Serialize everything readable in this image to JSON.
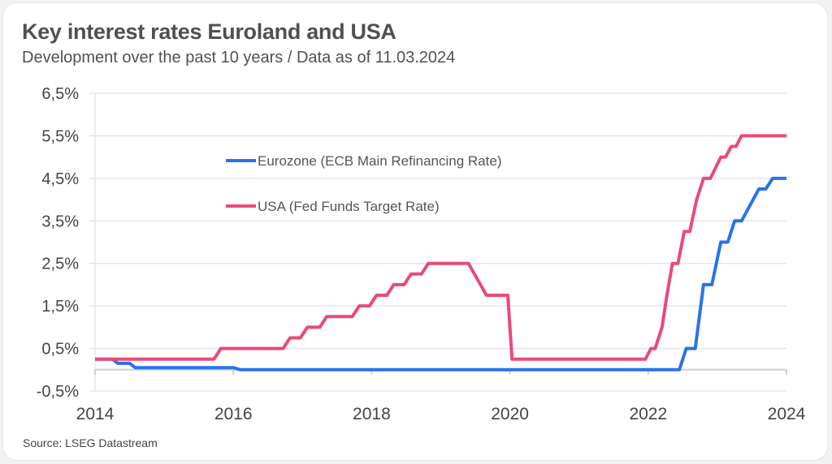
{
  "header": {
    "title": "Key interest rates Euroland and USA",
    "subtitle": "Development over the past 10 years / Data as of 11.03.2024"
  },
  "footer": {
    "source": "Source: LSEG Datastream"
  },
  "chart_data": {
    "type": "line",
    "title": "Key interest rates Euroland and USA",
    "subtitle": "Development over the past 10 years / Data as of 11.03.2024",
    "xlabel": "",
    "ylabel": "",
    "xlim": [
      2014,
      2024
    ],
    "ylim": [
      -0.5,
      6.5
    ],
    "x_ticks": [
      2014,
      2016,
      2018,
      2020,
      2022,
      2024
    ],
    "x_tick_labels": [
      "2014",
      "2016",
      "2018",
      "2020",
      "2022",
      "2024"
    ],
    "y_ticks": [
      6.5,
      5.5,
      4.5,
      3.5,
      2.5,
      1.5,
      0.5,
      -0.5
    ],
    "y_tick_labels": [
      "6,5%",
      "5,5%",
      "4,5%",
      "3,5%",
      "2,5%",
      "1,5%",
      "0,5%",
      "-0,5%"
    ],
    "grid": true,
    "zero_line": true,
    "legend_position": "upper-center",
    "series": [
      {
        "name": "Eurozone (ECB Main Refinancing Rate)",
        "color": "#2b72e8",
        "points": [
          [
            2014.0,
            0.25
          ],
          [
            2014.25,
            0.25
          ],
          [
            2014.33,
            0.15
          ],
          [
            2014.5,
            0.15
          ],
          [
            2014.58,
            0.05
          ],
          [
            2016.0,
            0.05
          ],
          [
            2016.1,
            0.0
          ],
          [
            2022.45,
            0.0
          ],
          [
            2022.55,
            0.5
          ],
          [
            2022.68,
            0.5
          ],
          [
            2022.8,
            2.0
          ],
          [
            2022.92,
            2.0
          ],
          [
            2023.05,
            3.0
          ],
          [
            2023.15,
            3.0
          ],
          [
            2023.25,
            3.5
          ],
          [
            2023.35,
            3.5
          ],
          [
            2023.6,
            4.25
          ],
          [
            2023.7,
            4.25
          ],
          [
            2023.8,
            4.5
          ],
          [
            2024.0,
            4.5
          ]
        ]
      },
      {
        "name": "USA (Fed Funds Target Rate)",
        "color": "#ea4a78",
        "points": [
          [
            2014.0,
            0.25
          ],
          [
            2015.72,
            0.25
          ],
          [
            2015.82,
            0.5
          ],
          [
            2016.72,
            0.5
          ],
          [
            2016.82,
            0.75
          ],
          [
            2016.97,
            0.75
          ],
          [
            2017.07,
            1.0
          ],
          [
            2017.25,
            1.0
          ],
          [
            2017.35,
            1.25
          ],
          [
            2017.72,
            1.25
          ],
          [
            2017.82,
            1.5
          ],
          [
            2017.97,
            1.5
          ],
          [
            2018.07,
            1.75
          ],
          [
            2018.22,
            1.75
          ],
          [
            2018.32,
            2.0
          ],
          [
            2018.47,
            2.0
          ],
          [
            2018.57,
            2.25
          ],
          [
            2018.72,
            2.25
          ],
          [
            2018.82,
            2.5
          ],
          [
            2019.4,
            2.5
          ],
          [
            2019.66,
            1.75
          ],
          [
            2019.97,
            1.75
          ],
          [
            2020.03,
            0.25
          ],
          [
            2021.96,
            0.25
          ],
          [
            2022.04,
            0.5
          ],
          [
            2022.1,
            0.5
          ],
          [
            2022.2,
            1.0
          ],
          [
            2022.27,
            1.75
          ],
          [
            2022.35,
            2.5
          ],
          [
            2022.43,
            2.5
          ],
          [
            2022.52,
            3.25
          ],
          [
            2022.6,
            3.25
          ],
          [
            2022.7,
            4.0
          ],
          [
            2022.8,
            4.5
          ],
          [
            2022.9,
            4.5
          ],
          [
            2023.05,
            5.0
          ],
          [
            2023.12,
            5.0
          ],
          [
            2023.2,
            5.25
          ],
          [
            2023.27,
            5.25
          ],
          [
            2023.35,
            5.5
          ],
          [
            2024.0,
            5.5
          ]
        ]
      }
    ]
  }
}
